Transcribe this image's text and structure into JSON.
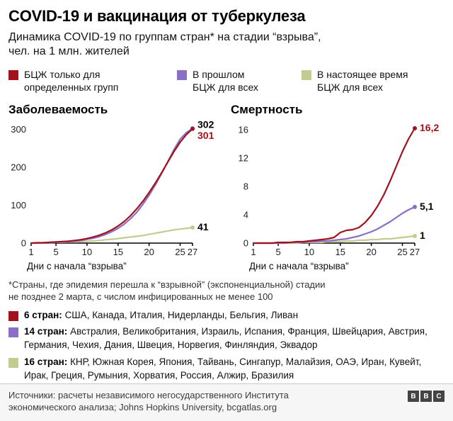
{
  "header": {
    "title": "COVID-19 и вакцинация от туберкулеза",
    "subtitle_lines": [
      "Динамика COVID-19 по группам стран* на стадии “взрыва”,",
      "чел. на 1 млн. жителей"
    ]
  },
  "colors": {
    "red": "#a2121b",
    "purple": "#8a6fc8",
    "green": "#c3cb8e"
  },
  "legend": [
    {
      "label": "БЦЖ только для определенных групп",
      "color": "#a2121b"
    },
    {
      "label": "В прошлом БЦЖ для всех",
      "color": "#8a6fc8"
    },
    {
      "label": "В настоящее время БЦЖ для всех",
      "color": "#c3cb8e"
    }
  ],
  "chart_data": [
    {
      "type": "line",
      "title": "Заболеваемость",
      "xlabel": "Дни с начала “взрыва”",
      "x_ticks": [
        1,
        5,
        10,
        15,
        20,
        25,
        27
      ],
      "x_range": [
        1,
        27
      ],
      "y_ticks": [
        0,
        100,
        200,
        300
      ],
      "y_max": 310,
      "grid": false,
      "series": [
        {
          "name": "БЦЖ только для определенных групп",
          "color": "#a2121b",
          "end_label": "301",
          "label_color": "#a2121b",
          "label_dy": 10,
          "values": [
            0,
            1,
            1,
            2,
            3,
            4,
            5,
            7,
            9,
            12,
            16,
            21,
            27,
            35,
            45,
            57,
            72,
            90,
            110,
            133,
            158,
            185,
            213,
            241,
            266,
            286,
            301
          ]
        },
        {
          "name": "В прошлом БЦЖ для всех",
          "color": "#8a6fc8",
          "end_label": "302",
          "label_color": "#000000",
          "label_dy": -5,
          "values": [
            0,
            0,
            1,
            1,
            2,
            3,
            4,
            5,
            7,
            10,
            13,
            17,
            23,
            30,
            39,
            50,
            64,
            81,
            102,
            126,
            153,
            183,
            214,
            246,
            274,
            291,
            302
          ]
        },
        {
          "name": "В настоящее время БЦЖ для всех",
          "color": "#c3cb8e",
          "end_label": "41",
          "label_color": "#000000",
          "label_dy": 0,
          "values": [
            0,
            0,
            1,
            1,
            2,
            2,
            3,
            3,
            4,
            5,
            6,
            7,
            9,
            10,
            12,
            14,
            16,
            18,
            20,
            23,
            26,
            29,
            32,
            35,
            37,
            39,
            41
          ]
        }
      ]
    },
    {
      "type": "line",
      "title": "Смертность",
      "xlabel": "Дни с начала “взрыва”",
      "x_ticks": [
        1,
        5,
        10,
        15,
        20,
        25,
        27
      ],
      "x_range": [
        1,
        27
      ],
      "y_ticks": [
        0,
        4,
        8,
        12,
        16
      ],
      "y_max": 16.6,
      "grid": false,
      "series": [
        {
          "name": "БЦЖ только для определенных групп",
          "color": "#a2121b",
          "end_label": "16,2",
          "label_color": "#a2121b",
          "label_dy": 0,
          "values": [
            0,
            0,
            0,
            0,
            0.1,
            0.1,
            0.1,
            0.2,
            0.2,
            0.3,
            0.4,
            0.5,
            0.6,
            0.8,
            1.5,
            1.8,
            1.9,
            2.2,
            2.9,
            3.9,
            5.2,
            6.8,
            8.7,
            10.8,
            12.9,
            14.7,
            16.2
          ]
        },
        {
          "name": "В прошлом БЦЖ для всех",
          "color": "#8a6fc8",
          "end_label": "5,1",
          "label_color": "#000000",
          "label_dy": 0,
          "values": [
            0,
            0,
            0,
            0,
            0,
            0,
            0.1,
            0.1,
            0.1,
            0.2,
            0.2,
            0.3,
            0.3,
            0.4,
            0.5,
            0.6,
            0.8,
            1.0,
            1.3,
            1.6,
            2.0,
            2.5,
            3.0,
            3.6,
            4.2,
            4.7,
            5.1
          ]
        },
        {
          "name": "В настоящее время БЦЖ для всех",
          "color": "#c3cb8e",
          "end_label": "1",
          "label_color": "#000000",
          "label_dy": 0,
          "values": [
            0,
            0,
            0,
            0,
            0,
            0,
            0,
            0,
            0.1,
            0.1,
            0.1,
            0.1,
            0.2,
            0.2,
            0.2,
            0.3,
            0.3,
            0.4,
            0.4,
            0.5,
            0.5,
            0.6,
            0.6,
            0.7,
            0.8,
            0.9,
            1.0
          ]
        }
      ]
    }
  ],
  "footnote_lines": [
    "*Страны, где эпидемия перешла к “взрывной” (экспоненциальной) стадии",
    "не позднее 2 марта, с числом инфицированных не менее 100"
  ],
  "groups": [
    {
      "color": "#a2121b",
      "label": "6 стран:",
      "countries": "США, Канада, Италия, Нидерланды, Бельгия, Ливан"
    },
    {
      "color": "#8a6fc8",
      "label": "14 стран:",
      "countries": "Австралия, Великобритания, Израиль, Испания, Франция, Швейцария, Австрия, Германия, Чехия, Дания, Швеция, Норвегия, Финляндия, Эквадор"
    },
    {
      "color": "#c3cb8e",
      "label": "16 стран:",
      "countries": "КНР, Южная Корея, Япония, Тайвань, Сингапур, Малайзия, ОАЭ, Иран, Кувейт, Ирак, Греция, Румыния, Хорватия, Россия, Алжир, Бразилия"
    }
  ],
  "footer": {
    "sources_lines": [
      "Источники: расчеты независимого негосударственного Института",
      "экономического анализа; Johns Hopkins University, bcgatlas.org"
    ],
    "logo_letters": [
      "B",
      "B",
      "C"
    ]
  }
}
